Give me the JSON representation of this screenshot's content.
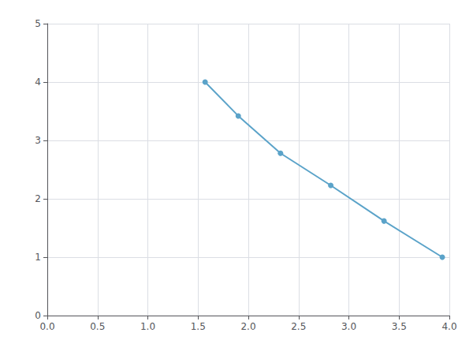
{
  "chart_data": {
    "type": "line",
    "x": [
      1.57,
      1.9,
      2.32,
      2.82,
      3.35,
      3.93
    ],
    "values": [
      4.0,
      3.42,
      2.78,
      2.23,
      1.62,
      1.0
    ],
    "color": "#5BA3C9",
    "marker": "circle",
    "xlim": [
      0,
      4
    ],
    "xticks": [
      {
        "value": 0,
        "label": "0.0"
      },
      0.5,
      {
        "value": 1,
        "label": "1.0"
      },
      1.5,
      {
        "value": 2,
        "label": "2.0"
      },
      2.5,
      {
        "value": 3,
        "label": "3.0"
      },
      3.5,
      {
        "value": 4,
        "label": "4.0"
      }
    ],
    "ylim": [
      0,
      5
    ],
    "yticks": [
      0,
      1,
      2,
      3,
      4,
      5
    ],
    "grid": true
  }
}
